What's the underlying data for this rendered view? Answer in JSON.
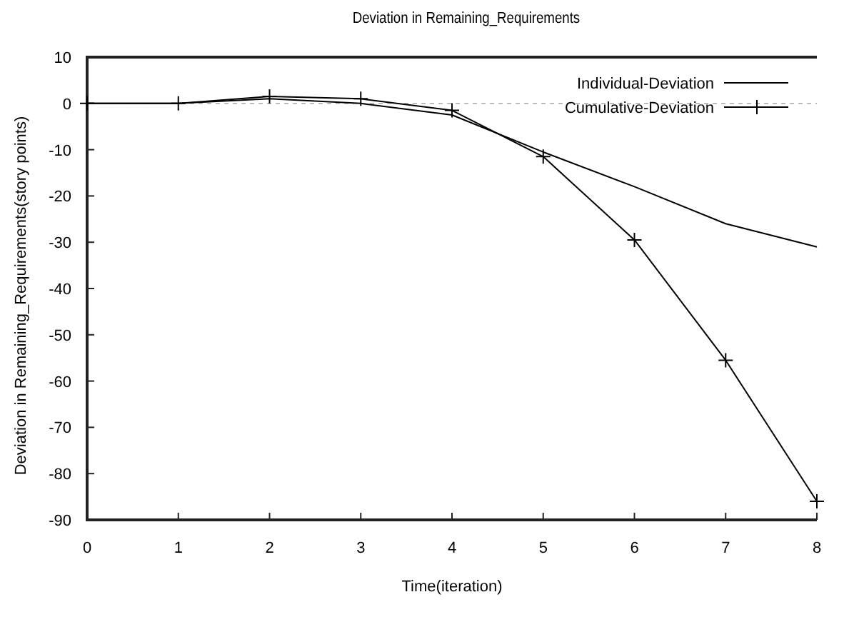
{
  "chart_data": {
    "type": "line",
    "title": "Deviation in Remaining_Requirements",
    "xlabel": "Time(iteration)",
    "ylabel": "Deviation in Remaining_Requirements(story points)",
    "x": [
      0,
      1,
      2,
      3,
      4,
      5,
      6,
      7,
      8
    ],
    "series": [
      {
        "name": "Individual-Deviation",
        "color": "#000000",
        "marker": "none",
        "values": [
          0,
          0,
          1,
          0,
          -2.5,
          -10.5,
          -18,
          -26,
          -31
        ]
      },
      {
        "name": "Cumulative-Deviation",
        "color": "#000000",
        "marker": "cross",
        "values": [
          0,
          0,
          1.5,
          1,
          -1.5,
          -11.5,
          -29.5,
          -55.5,
          -86
        ]
      }
    ],
    "xlim": [
      0,
      8
    ],
    "xticks": [
      0,
      1,
      2,
      3,
      4,
      5,
      6,
      7,
      8
    ],
    "ylim": [
      -90,
      10
    ],
    "yticks": [
      -90,
      -80,
      -70,
      -60,
      -50,
      -40,
      -30,
      -20,
      -10,
      0,
      10
    ],
    "ref_lines": [
      {
        "axis": "y",
        "value": 0,
        "color": "#aaaaaa",
        "line_style": "dashed"
      }
    ],
    "grid": false,
    "legend": "top right"
  }
}
